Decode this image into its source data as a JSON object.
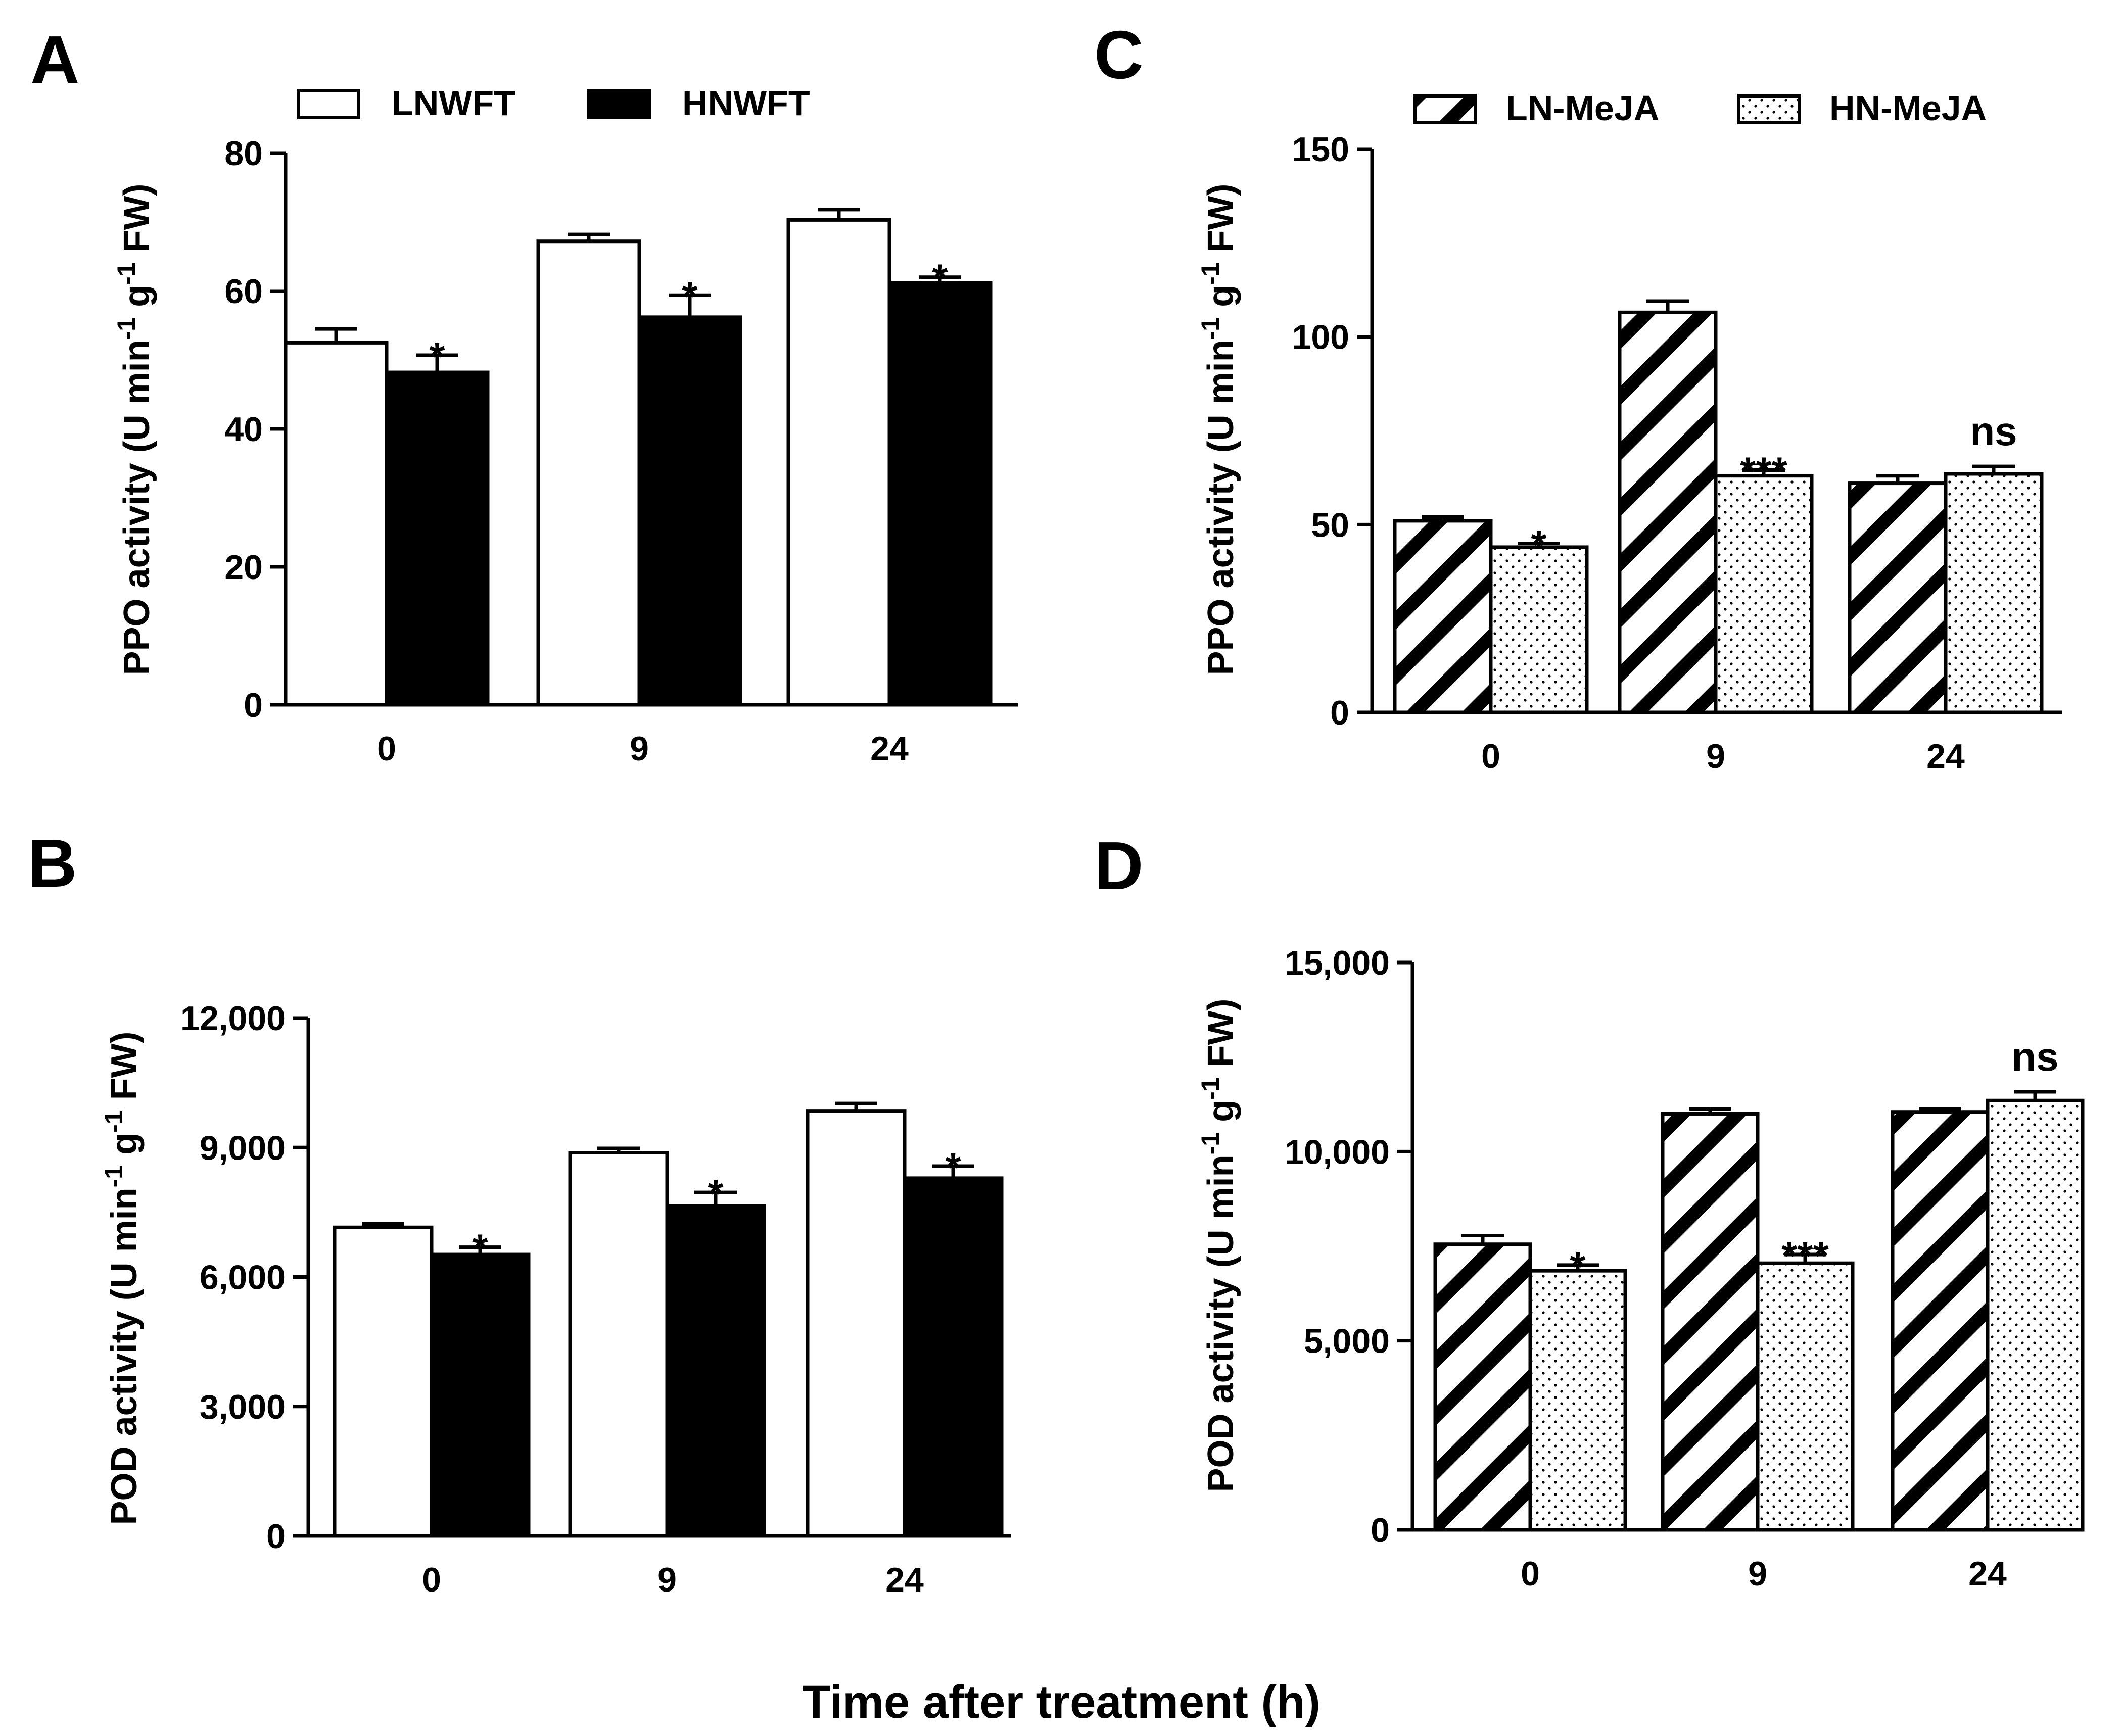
{
  "figure": {
    "xlabel": "Time after treatment (h)",
    "colors": {
      "ink": "#000000",
      "paper": "#ffffff"
    }
  },
  "chart_data": [
    {
      "panel": "A",
      "type": "bar",
      "categories": [
        "0",
        "9",
        "24"
      ],
      "series": [
        {
          "name": "LNWFT",
          "style": "open",
          "values": [
            52.5,
            67.2,
            70.3
          ],
          "errors": [
            2.0,
            1.0,
            1.5
          ]
        },
        {
          "name": "HNWFT",
          "style": "filled",
          "values": [
            48.2,
            56.2,
            61.2
          ],
          "errors": [
            2.5,
            3.2,
            0.8
          ]
        }
      ],
      "significance": [
        "*",
        "*",
        "*"
      ],
      "ylabel_main": "PPO activity (U min",
      "ylabel_mid": " g",
      "ylabel_end": " FW)",
      "ylabel_sup": "-1",
      "ylim": [
        0,
        80
      ],
      "yticks": [
        "0",
        "20",
        "40",
        "60",
        "80"
      ],
      "legend": "top"
    },
    {
      "panel": "B",
      "type": "bar",
      "categories": [
        "0",
        "9",
        "24"
      ],
      "series": [
        {
          "name": "LNWFT",
          "style": "open",
          "values": [
            7150,
            8880,
            9850
          ],
          "errors": [
            80,
            100,
            170
          ]
        },
        {
          "name": "HNWFT",
          "style": "filled",
          "values": [
            6520,
            7640,
            8290
          ],
          "errors": [
            170,
            320,
            280
          ]
        }
      ],
      "significance": [
        "*",
        "*",
        "*"
      ],
      "ylabel_main": "POD activity (U min",
      "ylabel_mid": " g",
      "ylabel_end": " FW)",
      "ylabel_sup": "-1",
      "ylim": [
        0,
        12000
      ],
      "yticks": [
        "0",
        "3,000",
        "6,000",
        "9,000",
        "12,000"
      ],
      "legend": "none"
    },
    {
      "panel": "C",
      "type": "bar",
      "categories": [
        "0",
        "9",
        "24"
      ],
      "series": [
        {
          "name": "LN-MeJA",
          "style": "hatch",
          "values": [
            51,
            106.5,
            61
          ],
          "errors": [
            1.0,
            3.0,
            2.0
          ]
        },
        {
          "name": "HN-MeJA",
          "style": "dots",
          "values": [
            44,
            63,
            63.5
          ],
          "errors": [
            1.0,
            1.5,
            2.0
          ]
        }
      ],
      "significance": [
        "*",
        "***",
        "ns"
      ],
      "ylabel_main": "PPO activity (U min",
      "ylabel_mid": " g",
      "ylabel_end": " FW)",
      "ylabel_sup": "-1",
      "ylim": [
        0,
        150
      ],
      "yticks": [
        "0",
        "50",
        "100",
        "150"
      ],
      "legend": "top"
    },
    {
      "panel": "D",
      "type": "bar",
      "categories": [
        "0",
        "9",
        "24"
      ],
      "series": [
        {
          "name": "LN-MeJA",
          "style": "hatch",
          "values": [
            7550,
            11000,
            11050
          ],
          "errors": [
            230,
            120,
            80
          ]
        },
        {
          "name": "HN-MeJA",
          "style": "dots",
          "values": [
            6850,
            7050,
            11350
          ],
          "errors": [
            150,
            230,
            230
          ]
        }
      ],
      "significance": [
        "*",
        "***",
        "ns"
      ],
      "ylabel_main": "POD activity (U min",
      "ylabel_mid": " g",
      "ylabel_end": " FW)",
      "ylabel_sup": "-1",
      "ylim": [
        0,
        15000
      ],
      "yticks": [
        "0",
        "5,000",
        "10,000",
        "15,000"
      ],
      "legend": "none"
    }
  ]
}
